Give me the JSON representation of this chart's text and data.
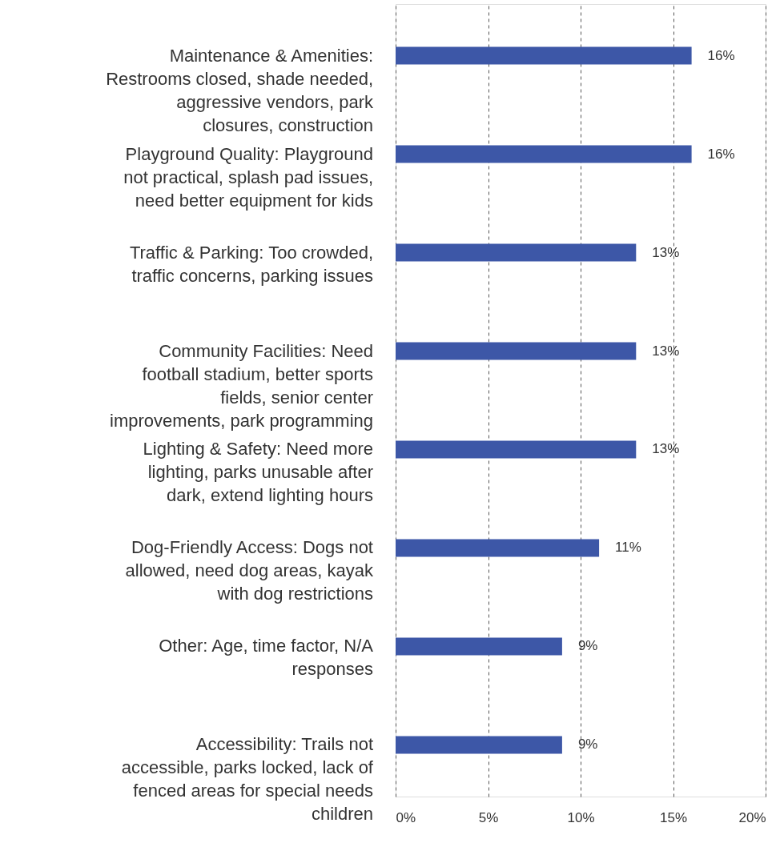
{
  "chart_data": {
    "type": "bar",
    "orientation": "horizontal",
    "categories": [
      "Maintenance & Amenities: Restrooms closed, shade needed, aggressive vendors, park closures, construction",
      "Playground Quality: Playground not practical, splash pad issues, need better equipment for kids",
      "Traffic & Parking: Too crowded, traffic concerns, parking issues",
      "Community Facilities: Need football stadium, better sports fields, senior center improvements, park programming",
      "Lighting & Safety: Need more lighting, parks unusable after dark, extend lighting hours",
      "Dog-Friendly Access: Dogs not allowed, need dog areas, kayak with dog restrictions",
      "Other: Age, time factor, N/A responses",
      "Accessibility: Trails not accessible, parks locked, lack of fenced areas for special needs children"
    ],
    "values": [
      16,
      16,
      13,
      13,
      13,
      11,
      9,
      9
    ],
    "color": "#3d57a7",
    "value_labels": [
      "16%",
      "16%",
      "13%",
      "13%",
      "13%",
      "11%",
      "9%",
      "9%"
    ],
    "xlim": [
      0,
      20
    ],
    "xticks": [
      {
        "value": 0,
        "label": "0%"
      },
      {
        "value": 5,
        "label": "5%"
      },
      {
        "value": 10,
        "label": "10%"
      },
      {
        "value": 15,
        "label": "15%"
      },
      {
        "value": 20,
        "label": "20%"
      }
    ],
    "grid": "x"
  }
}
